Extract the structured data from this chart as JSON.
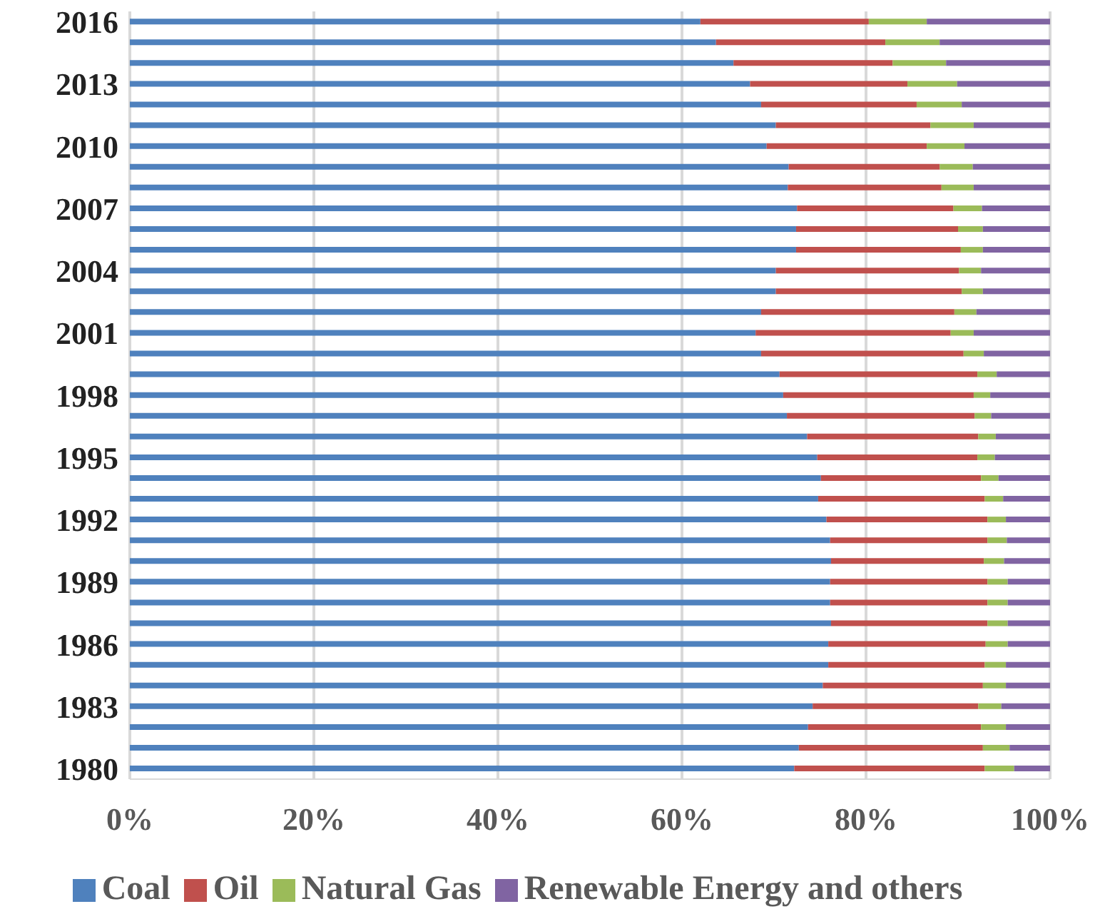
{
  "chart_data": {
    "type": "bar",
    "orientation": "horizontal",
    "stacked": true,
    "categories": [
      "2016",
      null,
      null,
      "2013",
      null,
      null,
      "2010",
      null,
      null,
      "2007",
      null,
      null,
      "2004",
      null,
      null,
      "2001",
      null,
      null,
      "1998",
      null,
      null,
      "1995",
      null,
      null,
      "1992",
      null,
      null,
      "1989",
      null,
      null,
      "1986",
      null,
      null,
      "1983",
      null,
      null,
      "1980"
    ],
    "series": [
      {
        "name": "Coal",
        "color": "#4f81bd",
        "values": [
          62.0,
          63.7,
          65.6,
          67.4,
          68.6,
          70.2,
          69.2,
          71.6,
          71.5,
          72.5,
          72.4,
          72.4,
          70.2,
          70.2,
          68.6,
          68.0,
          68.6,
          70.6,
          71.0,
          71.4,
          73.6,
          74.7,
          75.1,
          74.8,
          75.7,
          76.1,
          76.2,
          76.1,
          76.1,
          76.2,
          75.9,
          75.9,
          75.3,
          74.2,
          73.7,
          72.7,
          72.2
        ]
      },
      {
        "name": "Oil",
        "color": "#c0504d",
        "values": [
          18.3,
          18.4,
          17.3,
          17.1,
          16.9,
          16.8,
          17.4,
          16.4,
          16.7,
          17.0,
          17.6,
          17.9,
          19.9,
          20.2,
          21.0,
          21.2,
          22.0,
          21.5,
          20.7,
          20.4,
          18.6,
          17.4,
          17.4,
          18.1,
          17.5,
          17.1,
          16.6,
          17.1,
          17.1,
          17.0,
          17.1,
          17.0,
          17.4,
          18.0,
          18.8,
          20.0,
          20.7
        ]
      },
      {
        "name": "Natural Gas",
        "color": "#9bbb59",
        "values": [
          6.3,
          5.9,
          5.8,
          5.4,
          4.9,
          4.7,
          4.1,
          3.6,
          3.5,
          3.1,
          2.7,
          2.4,
          2.4,
          2.3,
          2.4,
          2.5,
          2.2,
          2.1,
          1.8,
          1.8,
          1.9,
          1.9,
          1.9,
          2.0,
          2.0,
          2.1,
          2.2,
          2.2,
          2.2,
          2.2,
          2.4,
          2.3,
          2.5,
          2.5,
          2.7,
          2.9,
          3.2
        ]
      },
      {
        "name": "Renewable Energy and others",
        "color": "#8064a2",
        "values": [
          13.4,
          12.0,
          11.3,
          10.1,
          9.6,
          8.3,
          9.3,
          8.4,
          8.3,
          7.4,
          7.3,
          7.3,
          7.5,
          7.3,
          8.0,
          8.3,
          7.2,
          5.8,
          6.5,
          6.4,
          5.9,
          6.0,
          5.6,
          5.1,
          4.8,
          4.7,
          5.0,
          4.6,
          4.6,
          4.6,
          4.6,
          4.8,
          4.8,
          5.3,
          4.8,
          4.4,
          3.9
        ]
      }
    ],
    "xlim": [
      0,
      100
    ],
    "xticks": [
      {
        "value": 0,
        "label": "0%"
      },
      {
        "value": 20,
        "label": "20%"
      },
      {
        "value": 40,
        "label": "40%"
      },
      {
        "value": 60,
        "label": "60%"
      },
      {
        "value": 80,
        "label": "80%"
      },
      {
        "value": 100,
        "label": "100%"
      }
    ],
    "grid": "x",
    "legend": "bottom"
  }
}
